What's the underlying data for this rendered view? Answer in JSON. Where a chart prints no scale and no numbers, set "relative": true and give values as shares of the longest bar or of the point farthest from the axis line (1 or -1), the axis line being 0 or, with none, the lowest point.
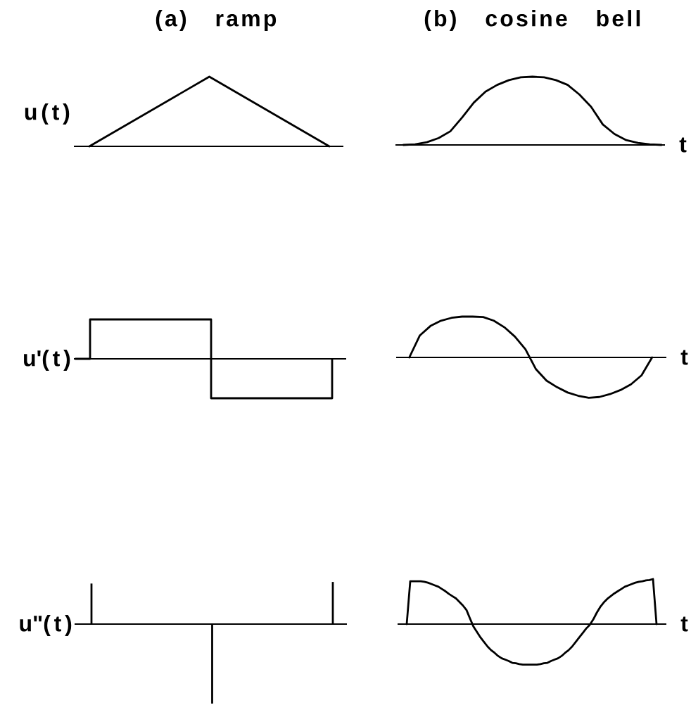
{
  "chart_data": [
    {
      "type": "line",
      "title": "(a) ramp",
      "ylabel": "u(t)",
      "categories": [
        null,
        null,
        null
      ],
      "values": [
        0,
        1,
        0
      ],
      "color": "#000000",
      "relative": true
    },
    {
      "type": "line",
      "title": "(b) cosine bell",
      "xlabel": "t",
      "categories": [
        null,
        null,
        null,
        null,
        null,
        null,
        null,
        null,
        null,
        null,
        null,
        null,
        null,
        null,
        null,
        null,
        null,
        null,
        null,
        null,
        null,
        null,
        null
      ],
      "values": [
        0,
        0.01,
        0.04,
        0.1,
        0.2,
        0.4,
        0.62,
        0.78,
        0.88,
        0.95,
        0.99,
        1,
        0.99,
        0.95,
        0.88,
        0.74,
        0.56,
        0.3,
        0.16,
        0.07,
        0.03,
        0.01,
        0
      ],
      "color": "#000000",
      "relative": true
    },
    {
      "type": "step",
      "ylabel": "u'(t)",
      "categories": [
        null,
        null,
        null,
        null,
        null,
        null,
        null,
        null,
        null,
        null,
        null,
        null,
        null,
        null,
        null,
        null,
        null,
        null
      ],
      "values": [
        0,
        1,
        1,
        1,
        1,
        1,
        1,
        1,
        1,
        -1,
        -1,
        -1,
        -1,
        -1,
        -1,
        -1,
        -1,
        0
      ],
      "color": "#000000",
      "relative": true
    },
    {
      "type": "line",
      "xlabel": "t",
      "categories": [
        null,
        null,
        null,
        null,
        null,
        null,
        null,
        null,
        null,
        null,
        null,
        null,
        null,
        null,
        null,
        null,
        null,
        null,
        null,
        null,
        null,
        null,
        null,
        null
      ],
      "values": [
        0,
        0.54,
        0.77,
        0.9,
        0.97,
        1,
        1,
        0.99,
        0.9,
        0.74,
        0.51,
        0.2,
        -0.29,
        -0.57,
        -0.73,
        -0.86,
        -0.94,
        -0.99,
        -0.97,
        -0.9,
        -0.8,
        -0.66,
        -0.44,
        0
      ],
      "color": "#000000",
      "relative": true
    },
    {
      "type": "bar",
      "ylabel": "u\"(t)",
      "categories": [
        null,
        null,
        null
      ],
      "values": [
        0.51,
        -1,
        0.53
      ],
      "color": "#000000",
      "relative": true
    },
    {
      "type": "line",
      "xlabel": "t",
      "categories": [
        null,
        null,
        null,
        null,
        null,
        null,
        null,
        null,
        null,
        null,
        null,
        null,
        null,
        null,
        null,
        null,
        null,
        null,
        null,
        null,
        null,
        null,
        null,
        null,
        null,
        null,
        null,
        null,
        null,
        null,
        null,
        null,
        null,
        null,
        null,
        null,
        null,
        null,
        null,
        null,
        null,
        null,
        null,
        null,
        null,
        null,
        null,
        null,
        null,
        null,
        null,
        null,
        null,
        null,
        null,
        null,
        null,
        null,
        null,
        null,
        null,
        null,
        null,
        null,
        null,
        null,
        null,
        null,
        null,
        null,
        null,
        null
      ],
      "values": [
        0,
        0.95,
        0.95,
        0.95,
        0.95,
        0.94,
        0.92,
        0.89,
        0.86,
        0.83,
        0.78,
        0.73,
        0.67,
        0.62,
        0.57,
        0.49,
        0.41,
        0.31,
        0.12,
        -0.06,
        -0.18,
        -0.3,
        -0.4,
        -0.5,
        -0.58,
        -0.64,
        -0.71,
        -0.76,
        -0.79,
        -0.82,
        -0.86,
        -0.87,
        -0.89,
        -0.9,
        -0.9,
        -0.9,
        -0.9,
        -0.9,
        -0.89,
        -0.87,
        -0.86,
        -0.82,
        -0.79,
        -0.76,
        -0.71,
        -0.64,
        -0.58,
        -0.5,
        -0.4,
        -0.3,
        -0.2,
        -0.1,
        -0.02,
        0.1,
        0.25,
        0.38,
        0.48,
        0.56,
        0.62,
        0.68,
        0.73,
        0.78,
        0.83,
        0.86,
        0.89,
        0.92,
        0.94,
        0.95,
        0.97,
        0.98,
        1,
        0
      ],
      "color": "#000000",
      "relative": true
    }
  ]
}
